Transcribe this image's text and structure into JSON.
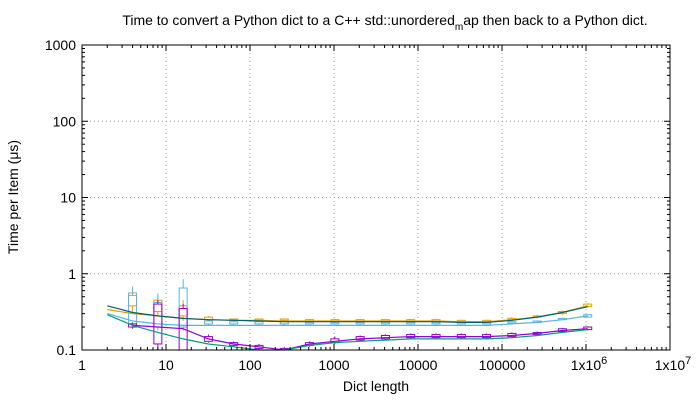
{
  "chart_data": {
    "type": "line",
    "title_main": "Time to convert a Python dict to a C++ std::unordered",
    "title_sub": "m",
    "title_tail": "ap then back to a Python dict.",
    "xlabel": "Dict length",
    "ylabel": "Time per Item (μs)",
    "xscale": "log",
    "yscale": "log",
    "xlim": [
      1,
      10000000
    ],
    "ylim": [
      0.1,
      1000
    ],
    "grid": true,
    "x_ticks": [
      {
        "value": 1,
        "label": "1"
      },
      {
        "value": 10,
        "label": "10"
      },
      {
        "value": 100,
        "label": "100"
      },
      {
        "value": 1000,
        "label": "1000"
      },
      {
        "value": 10000,
        "label": "10000"
      },
      {
        "value": 100000,
        "label": "100000"
      },
      {
        "value": 1000000,
        "label": "1x10",
        "exp": "6"
      },
      {
        "value": 10000000,
        "label": "1x10",
        "exp": "7"
      }
    ],
    "y_ticks": [
      {
        "value": 0.1,
        "label": "0.1"
      },
      {
        "value": 1,
        "label": "1"
      },
      {
        "value": 10,
        "label": "10"
      },
      {
        "value": 100,
        "label": "100"
      },
      {
        "value": 1000,
        "label": "1000"
      }
    ],
    "series": [
      {
        "color": "#e69f00",
        "x": [
          2,
          4,
          8,
          16,
          32,
          64,
          128,
          256,
          512,
          1024,
          2048,
          4096,
          8192,
          16384,
          32768,
          65536,
          131072,
          262144,
          524288,
          1048576
        ],
        "y": [
          0.34,
          0.3,
          0.28,
          0.26,
          0.25,
          0.245,
          0.245,
          0.24,
          0.24,
          0.24,
          0.24,
          0.24,
          0.24,
          0.24,
          0.235,
          0.235,
          0.25,
          0.27,
          0.31,
          0.38
        ],
        "boxes": [
          {
            "x": 4,
            "q1": 0.38,
            "q3": 0.52,
            "lo": 0.3,
            "hi": 0.6
          },
          {
            "x": 8,
            "q1": 0.32,
            "q3": 0.45,
            "lo": 0.28,
            "hi": 0.5
          },
          {
            "x": 16,
            "q1": 0.28,
            "q3": 0.38,
            "lo": 0.24,
            "hi": 0.45
          },
          {
            "x": 32,
            "q1": 0.25,
            "q3": 0.27,
            "lo": 0.24,
            "hi": 0.28
          },
          {
            "x": 64,
            "q1": 0.245,
            "q3": 0.255,
            "lo": 0.24,
            "hi": 0.26
          },
          {
            "x": 128,
            "q1": 0.245,
            "q3": 0.255,
            "lo": 0.24,
            "hi": 0.26
          },
          {
            "x": 256,
            "q1": 0.245,
            "q3": 0.255,
            "lo": 0.24,
            "hi": 0.26
          },
          {
            "x": 512,
            "q1": 0.24,
            "q3": 0.25,
            "lo": 0.235,
            "hi": 0.255
          },
          {
            "x": 1024,
            "q1": 0.24,
            "q3": 0.25,
            "lo": 0.235,
            "hi": 0.255
          },
          {
            "x": 2048,
            "q1": 0.24,
            "q3": 0.25,
            "lo": 0.235,
            "hi": 0.255
          },
          {
            "x": 4096,
            "q1": 0.24,
            "q3": 0.25,
            "lo": 0.235,
            "hi": 0.255
          },
          {
            "x": 8192,
            "q1": 0.24,
            "q3": 0.25,
            "lo": 0.235,
            "hi": 0.255
          },
          {
            "x": 16384,
            "q1": 0.24,
            "q3": 0.25,
            "lo": 0.235,
            "hi": 0.255
          },
          {
            "x": 32768,
            "q1": 0.235,
            "q3": 0.245,
            "lo": 0.23,
            "hi": 0.25
          },
          {
            "x": 65536,
            "q1": 0.235,
            "q3": 0.245,
            "lo": 0.23,
            "hi": 0.25
          },
          {
            "x": 131072,
            "q1": 0.25,
            "q3": 0.26,
            "lo": 0.245,
            "hi": 0.27
          },
          {
            "x": 262144,
            "q1": 0.27,
            "q3": 0.28,
            "lo": 0.26,
            "hi": 0.29
          },
          {
            "x": 524288,
            "q1": 0.3,
            "q3": 0.32,
            "lo": 0.29,
            "hi": 0.33
          },
          {
            "x": 1048576,
            "q1": 0.37,
            "q3": 0.4,
            "lo": 0.36,
            "hi": 0.41
          }
        ]
      },
      {
        "color": "#56b4e9",
        "x": [
          2,
          4,
          8,
          16,
          32,
          64,
          128,
          256,
          512,
          1024,
          2048,
          4096,
          8192,
          16384,
          32768,
          65536,
          131072,
          262144,
          524288,
          1048576
        ],
        "y": [
          0.3,
          0.24,
          0.22,
          0.21,
          0.21,
          0.21,
          0.21,
          0.21,
          0.21,
          0.21,
          0.21,
          0.21,
          0.21,
          0.21,
          0.21,
          0.21,
          0.22,
          0.23,
          0.25,
          0.28
        ],
        "boxes": [
          {
            "x": 4,
            "q1": 0.22,
            "q3": 0.56,
            "lo": 0.2,
            "hi": 0.68
          },
          {
            "x": 8,
            "q1": 0.2,
            "q3": 0.42,
            "lo": 0.18,
            "hi": 0.55
          },
          {
            "x": 16,
            "q1": 0.2,
            "q3": 0.65,
            "lo": 0.18,
            "hi": 0.85
          },
          {
            "x": 32,
            "q1": 0.22,
            "q3": 0.24,
            "lo": 0.21,
            "hi": 0.25
          },
          {
            "x": 64,
            "q1": 0.22,
            "q3": 0.235,
            "lo": 0.21,
            "hi": 0.24
          },
          {
            "x": 128,
            "q1": 0.22,
            "q3": 0.235,
            "lo": 0.21,
            "hi": 0.24
          },
          {
            "x": 256,
            "q1": 0.22,
            "q3": 0.235,
            "lo": 0.21,
            "hi": 0.24
          },
          {
            "x": 512,
            "q1": 0.22,
            "q3": 0.23,
            "lo": 0.215,
            "hi": 0.235
          },
          {
            "x": 1024,
            "q1": 0.22,
            "q3": 0.23,
            "lo": 0.215,
            "hi": 0.235
          },
          {
            "x": 2048,
            "q1": 0.22,
            "q3": 0.23,
            "lo": 0.215,
            "hi": 0.235
          },
          {
            "x": 4096,
            "q1": 0.22,
            "q3": 0.23,
            "lo": 0.215,
            "hi": 0.235
          },
          {
            "x": 8192,
            "q1": 0.22,
            "q3": 0.23,
            "lo": 0.215,
            "hi": 0.235
          },
          {
            "x": 16384,
            "q1": 0.22,
            "q3": 0.23,
            "lo": 0.215,
            "hi": 0.235
          },
          {
            "x": 32768,
            "q1": 0.22,
            "q3": 0.23,
            "lo": 0.215,
            "hi": 0.235
          },
          {
            "x": 65536,
            "q1": 0.22,
            "q3": 0.23,
            "lo": 0.215,
            "hi": 0.235
          },
          {
            "x": 131072,
            "q1": 0.225,
            "q3": 0.235,
            "lo": 0.22,
            "hi": 0.24
          },
          {
            "x": 262144,
            "q1": 0.23,
            "q3": 0.24,
            "lo": 0.225,
            "hi": 0.245
          },
          {
            "x": 524288,
            "q1": 0.25,
            "q3": 0.26,
            "lo": 0.245,
            "hi": 0.265
          },
          {
            "x": 1048576,
            "q1": 0.27,
            "q3": 0.29,
            "lo": 0.265,
            "hi": 0.295
          }
        ]
      },
      {
        "color": "#9400d3",
        "x": [
          4,
          8,
          16,
          32,
          64,
          128,
          256,
          512,
          1024,
          2048,
          4096,
          8192,
          16384,
          32768,
          65536,
          131072,
          262144,
          524288,
          1048576
        ],
        "y": [
          0.21,
          0.2,
          0.19,
          0.14,
          0.12,
          0.11,
          0.1,
          0.12,
          0.13,
          0.14,
          0.145,
          0.15,
          0.15,
          0.15,
          0.15,
          0.155,
          0.165,
          0.18,
          0.19
        ],
        "boxes": [
          {
            "x": 4,
            "q1": 0.2,
            "q3": 0.22,
            "lo": 0.19,
            "hi": 0.23
          },
          {
            "x": 8,
            "q1": 0.12,
            "q3": 0.4,
            "lo": 0.1,
            "hi": 0.45
          },
          {
            "x": 16,
            "q1": 0.1,
            "q3": 0.35,
            "lo": 0.1,
            "hi": 0.4
          },
          {
            "x": 32,
            "q1": 0.13,
            "q3": 0.15,
            "lo": 0.125,
            "hi": 0.16
          },
          {
            "x": 64,
            "q1": 0.115,
            "q3": 0.125,
            "lo": 0.11,
            "hi": 0.13
          },
          {
            "x": 128,
            "q1": 0.105,
            "q3": 0.115,
            "lo": 0.1,
            "hi": 0.12
          },
          {
            "x": 256,
            "q1": 0.098,
            "q3": 0.105,
            "lo": 0.095,
            "hi": 0.11
          },
          {
            "x": 512,
            "q1": 0.115,
            "q3": 0.125,
            "lo": 0.11,
            "hi": 0.13
          },
          {
            "x": 1024,
            "q1": 0.125,
            "q3": 0.14,
            "lo": 0.12,
            "hi": 0.15
          },
          {
            "x": 2048,
            "q1": 0.135,
            "q3": 0.15,
            "lo": 0.13,
            "hi": 0.155
          },
          {
            "x": 4096,
            "q1": 0.14,
            "q3": 0.155,
            "lo": 0.135,
            "hi": 0.16
          },
          {
            "x": 8192,
            "q1": 0.145,
            "q3": 0.16,
            "lo": 0.14,
            "hi": 0.165
          },
          {
            "x": 16384,
            "q1": 0.145,
            "q3": 0.16,
            "lo": 0.14,
            "hi": 0.165
          },
          {
            "x": 32768,
            "q1": 0.145,
            "q3": 0.16,
            "lo": 0.14,
            "hi": 0.165
          },
          {
            "x": 65536,
            "q1": 0.145,
            "q3": 0.16,
            "lo": 0.14,
            "hi": 0.165
          },
          {
            "x": 131072,
            "q1": 0.15,
            "q3": 0.165,
            "lo": 0.145,
            "hi": 0.17
          },
          {
            "x": 262144,
            "q1": 0.16,
            "q3": 0.17,
            "lo": 0.155,
            "hi": 0.175
          },
          {
            "x": 524288,
            "q1": 0.175,
            "q3": 0.19,
            "lo": 0.17,
            "hi": 0.195
          },
          {
            "x": 1048576,
            "q1": 0.185,
            "q3": 0.2,
            "lo": 0.18,
            "hi": 0.205
          }
        ]
      },
      {
        "color": "#009e73",
        "x": [
          2,
          4,
          8,
          16,
          32,
          64,
          128,
          256,
          512,
          1024,
          2048,
          4096,
          8192,
          16384,
          32768,
          65536,
          131072,
          262144,
          524288,
          1048576
        ],
        "y": [
          0.29,
          0.21,
          0.17,
          0.14,
          0.12,
          0.11,
          0.1,
          0.1,
          0.115,
          0.125,
          0.13,
          0.135,
          0.14,
          0.14,
          0.14,
          0.14,
          0.145,
          0.155,
          0.17,
          0.185
        ],
        "boxes": []
      },
      {
        "color": "#005f73",
        "x": [
          2,
          4,
          8,
          16,
          32,
          64,
          128,
          256,
          512,
          1024,
          2048,
          4096,
          8192,
          16384,
          32768,
          65536,
          131072,
          262144,
          524288,
          1048576
        ],
        "y": [
          0.38,
          0.31,
          0.28,
          0.26,
          0.25,
          0.245,
          0.24,
          0.235,
          0.235,
          0.235,
          0.235,
          0.235,
          0.235,
          0.235,
          0.23,
          0.23,
          0.245,
          0.27,
          0.31,
          0.37
        ],
        "boxes": []
      }
    ]
  }
}
